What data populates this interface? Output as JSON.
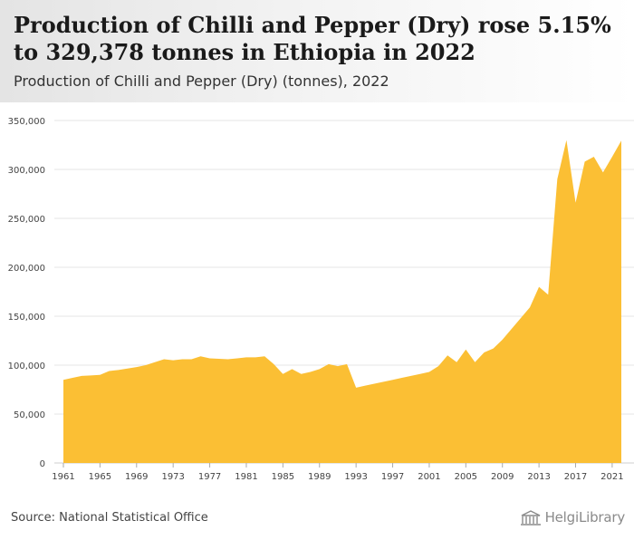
{
  "header": {
    "title": "Production of Chilli and Pepper (Dry) rose 5.15% to 329,378 tonnes in Ethiopia in 2022",
    "subtitle": "Production of Chilli and Pepper (Dry) (tonnes), 2022"
  },
  "footer": {
    "source": "Source: National Statistical Office",
    "logo_text": "HelgiLibrary"
  },
  "colors": {
    "area": "#fbbf34",
    "grid": "#e6e6e6",
    "axis_text": "#444444"
  },
  "chart_data": {
    "type": "area",
    "title": "Production of Chilli and Pepper (Dry) rose 5.15% to 329,378 tonnes in Ethiopia in 2022",
    "subtitle": "Production of Chilli and Pepper (Dry) (tonnes), 2022",
    "xlabel": "",
    "ylabel": "",
    "ylim": [
      0,
      350000
    ],
    "xlim": [
      1961,
      2022
    ],
    "yticks": [
      0,
      50000,
      100000,
      150000,
      200000,
      250000,
      300000,
      350000
    ],
    "ytick_labels": [
      "0",
      "50,000",
      "100,000",
      "150,000",
      "200,000",
      "250,000",
      "300,000",
      "350,000"
    ],
    "xticks": [
      1961,
      1965,
      1969,
      1973,
      1977,
      1981,
      1985,
      1989,
      1993,
      1997,
      2001,
      2005,
      2009,
      2013,
      2017,
      2021
    ],
    "grid": true,
    "legend": "none",
    "x": [
      1961,
      1962,
      1963,
      1964,
      1965,
      1966,
      1967,
      1968,
      1969,
      1970,
      1971,
      1972,
      1973,
      1974,
      1975,
      1976,
      1977,
      1978,
      1979,
      1980,
      1981,
      1982,
      1983,
      1984,
      1985,
      1986,
      1987,
      1988,
      1989,
      1990,
      1991,
      1992,
      1993,
      1994,
      1995,
      1996,
      1997,
      1998,
      1999,
      2000,
      2001,
      2002,
      2003,
      2004,
      2005,
      2006,
      2007,
      2008,
      2009,
      2010,
      2011,
      2012,
      2013,
      2014,
      2015,
      2016,
      2017,
      2018,
      2019,
      2020,
      2021,
      2022
    ],
    "values": [
      85000,
      87000,
      89000,
      89500,
      90000,
      94000,
      95000,
      96500,
      98000,
      100000,
      103000,
      106000,
      105000,
      106000,
      106000,
      109000,
      107000,
      106500,
      106000,
      107000,
      108000,
      108000,
      109000,
      101000,
      91000,
      96000,
      91000,
      93000,
      96000,
      101000,
      99000,
      101000,
      77000,
      79000,
      81000,
      83000,
      85000,
      87000,
      89000,
      91000,
      93000,
      99000,
      110000,
      103000,
      116000,
      103000,
      113000,
      117000,
      126000,
      137000,
      148000,
      159000,
      180000,
      172000,
      290000,
      330000,
      266000,
      308000,
      313000,
      297000,
      313000,
      329378
    ]
  }
}
